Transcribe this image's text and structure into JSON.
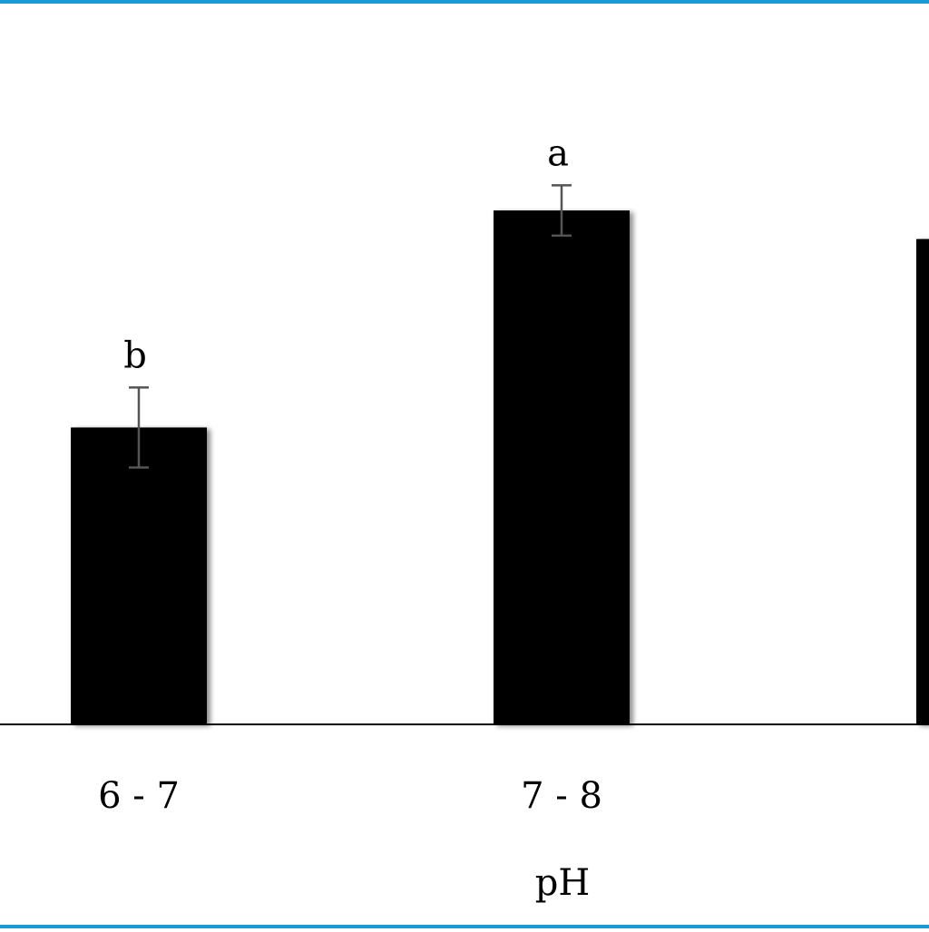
{
  "chart_data": {
    "type": "bar",
    "categories": [
      "6 - 7",
      "7 - 8",
      ""
    ],
    "values": [
      2.6,
      4.5,
      4.25
    ],
    "error": [
      0.35,
      0.22,
      null
    ],
    "group_labels": [
      "b",
      "a",
      ""
    ],
    "title": "",
    "xlabel": "pH",
    "ylabel": "",
    "ylim": [
      0,
      6.2
    ],
    "grid": false,
    "legend": "none",
    "bar_color": "#000000",
    "error_bar_color": "#555555"
  },
  "frame": {
    "accent_color": "#1a9ad6"
  }
}
